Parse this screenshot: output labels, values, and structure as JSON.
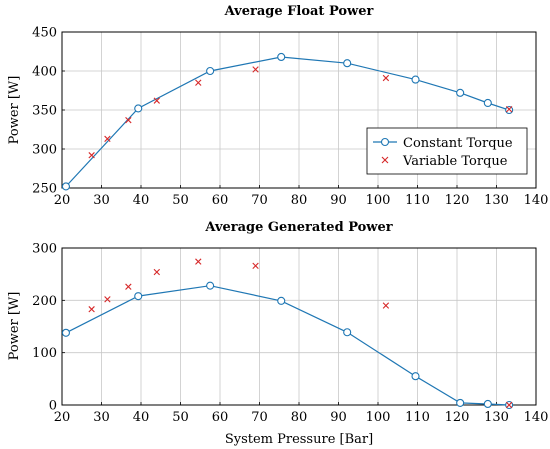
{
  "colors": {
    "constant": "#1f77b4",
    "variable": "#d62728",
    "grid": "#c8c8c8"
  },
  "chart_data": [
    {
      "type": "line",
      "title": "Average Float Power",
      "xlabel": "",
      "ylabel": "Power [W]",
      "xlim": [
        20,
        140
      ],
      "ylim": [
        250,
        450
      ],
      "xticks": [
        20,
        30,
        40,
        50,
        60,
        70,
        80,
        90,
        100,
        110,
        120,
        130,
        140
      ],
      "yticks": [
        250,
        300,
        350,
        400,
        450
      ],
      "grid": true,
      "legend": {
        "position": "bottom-right",
        "entries": [
          "Constant Torque",
          "Variable Torque"
        ]
      },
      "series": [
        {
          "name": "Constant Torque",
          "style": "line-circle",
          "x": [
            21,
            39.3,
            57.5,
            75.5,
            92.2,
            109.5,
            120.8,
            127.8,
            133.2
          ],
          "y": [
            252,
            352,
            400,
            418,
            410,
            389,
            372,
            359,
            350
          ]
        },
        {
          "name": "Variable Torque",
          "style": "cross",
          "x": [
            27.5,
            31.5,
            36.8,
            44,
            54.5,
            69,
            102,
            133.2
          ],
          "y": [
            292,
            313,
            337,
            362,
            385,
            402,
            391,
            351
          ]
        }
      ]
    },
    {
      "type": "line",
      "title": "Average Generated Power",
      "xlabel": "System Pressure [Bar]",
      "ylabel": "Power [W]",
      "xlim": [
        20,
        140
      ],
      "ylim": [
        0,
        300
      ],
      "xticks": [
        20,
        30,
        40,
        50,
        60,
        70,
        80,
        90,
        100,
        110,
        120,
        130,
        140
      ],
      "yticks": [
        0,
        100,
        200,
        300
      ],
      "grid": true,
      "series": [
        {
          "name": "Constant Torque",
          "style": "line-circle",
          "x": [
            21,
            39.3,
            57.5,
            75.5,
            92.2,
            109.5,
            120.8,
            127.8,
            133.2
          ],
          "y": [
            138,
            208,
            228,
            199,
            139,
            55,
            4,
            2,
            0
          ]
        },
        {
          "name": "Variable Torque",
          "style": "cross",
          "x": [
            27.5,
            31.5,
            36.8,
            44,
            54.5,
            69,
            102,
            133.2
          ],
          "y": [
            183,
            202,
            226,
            254,
            274,
            266,
            190,
            0
          ]
        }
      ]
    }
  ]
}
